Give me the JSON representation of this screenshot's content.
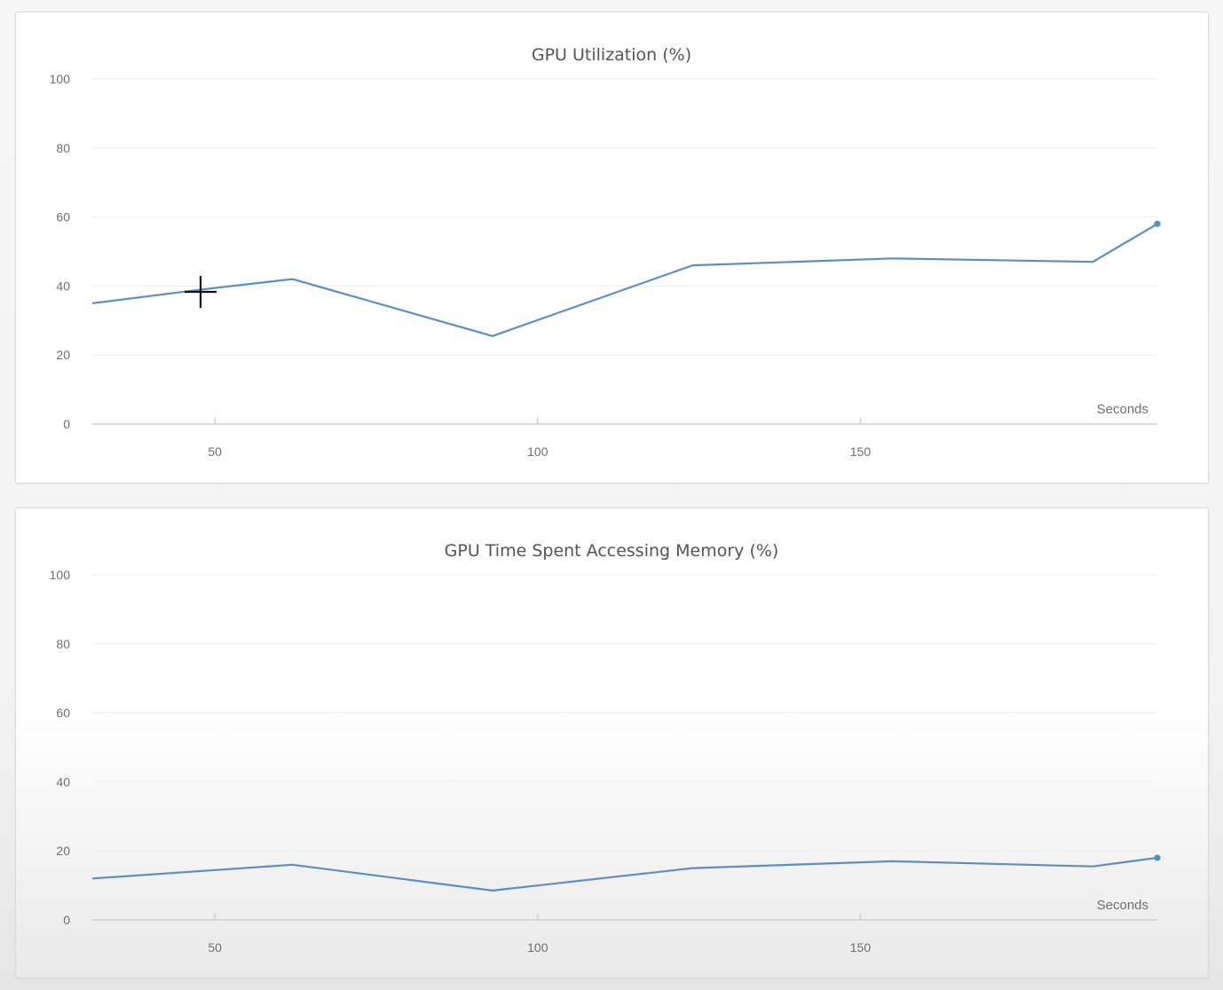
{
  "colors": {
    "series": "#5b8ec8"
  },
  "cursor_icon": "crosshair-cursor-icon",
  "chart_data": [
    {
      "type": "line",
      "title": "GPU Utilization (%)",
      "xlabel": "Seconds",
      "ylabel": "",
      "xlim": [
        31,
        196
      ],
      "ylim": [
        0,
        100
      ],
      "yticks": [
        0,
        20,
        40,
        60,
        80,
        100
      ],
      "xticks": [
        50,
        100,
        150
      ],
      "grid": true,
      "series": [
        {
          "x": [
            31,
            48,
            62,
            93,
            124,
            155,
            186,
            196
          ],
          "y": [
            35,
            39,
            42,
            25.5,
            46,
            48,
            47,
            58
          ],
          "end_marker": true
        }
      ]
    },
    {
      "type": "line",
      "title": "GPU Time Spent Accessing Memory (%)",
      "xlabel": "Seconds",
      "ylabel": "",
      "xlim": [
        31,
        196
      ],
      "ylim": [
        0,
        100
      ],
      "yticks": [
        0,
        20,
        40,
        60,
        80,
        100
      ],
      "xticks": [
        50,
        100,
        150
      ],
      "grid": true,
      "series": [
        {
          "x": [
            31,
            62,
            93,
            124,
            155,
            186,
            196
          ],
          "y": [
            12,
            16,
            8.5,
            15,
            17,
            15.5,
            18
          ],
          "end_marker": true
        }
      ]
    }
  ]
}
